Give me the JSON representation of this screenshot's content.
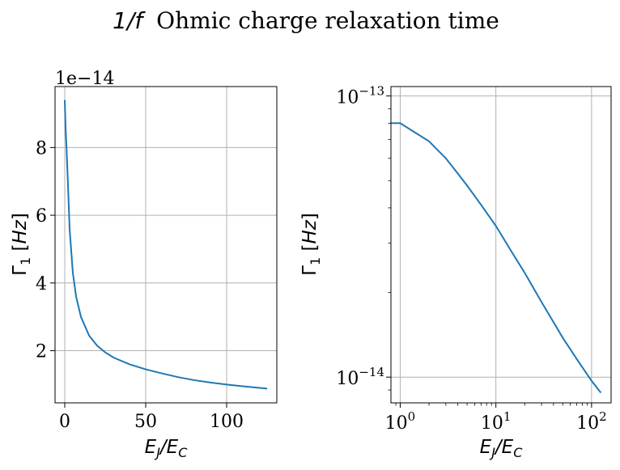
{
  "figure": {
    "suptitle_math": "1/f",
    "suptitle_text": "Ohmic charge relaxation time"
  },
  "chart_data": [
    {
      "type": "line",
      "panel": "left",
      "xscale": "linear",
      "yscale": "linear",
      "xlabel": "E_J/E_C",
      "ylabel": "Γ_1 [Hz]",
      "offset_text": "1e−14",
      "xlim": [
        -6,
        131
      ],
      "ylim": [
        0.46,
        9.8
      ],
      "xticks": [
        0,
        50,
        100
      ],
      "xtick_labels": [
        "0",
        "50",
        "100"
      ],
      "yticks": [
        2,
        4,
        6,
        8
      ],
      "ytick_labels": [
        "2",
        "4",
        "6",
        "8"
      ],
      "grid": true,
      "series": [
        {
          "color": "#1f77b4",
          "x": [
            0,
            0.5,
            1,
            2,
            3,
            5,
            7,
            10,
            15,
            20,
            25,
            30,
            40,
            50,
            60,
            70,
            80,
            90,
            100,
            110,
            125
          ],
          "y": [
            9.4,
            8.6,
            8.1,
            6.9,
            5.6,
            4.3,
            3.6,
            3.0,
            2.45,
            2.15,
            1.95,
            1.8,
            1.6,
            1.45,
            1.33,
            1.22,
            1.13,
            1.06,
            1.0,
            0.95,
            0.88
          ]
        }
      ]
    },
    {
      "type": "line",
      "panel": "right",
      "xscale": "log",
      "yscale": "log",
      "xlabel": "E_J/E_C",
      "ylabel": "Γ_1 [Hz]",
      "xlim": [
        0.8,
        160
      ],
      "ylim": [
        8.1e-15,
        1.08e-13
      ],
      "xticks": [
        1,
        10,
        100
      ],
      "xtick_labels": [
        "10^0",
        "10^1",
        "10^2"
      ],
      "yticks": [
        1e-14,
        1e-13
      ],
      "ytick_labels": [
        "10^−14",
        "10^−13"
      ],
      "grid": true,
      "series": [
        {
          "color": "#1f77b4",
          "x": [
            0.8,
            1,
            2,
            3,
            4,
            5,
            7,
            10,
            15,
            20,
            30,
            50,
            70,
            100,
            125
          ],
          "y": [
            8e-14,
            8e-14,
            6.9e-14,
            6e-14,
            5.3e-14,
            4.8e-14,
            4.1e-14,
            3.45e-14,
            2.75e-14,
            2.35e-14,
            1.85e-14,
            1.38e-14,
            1.16e-14,
            9.7e-15,
            8.8e-15
          ]
        }
      ]
    }
  ]
}
